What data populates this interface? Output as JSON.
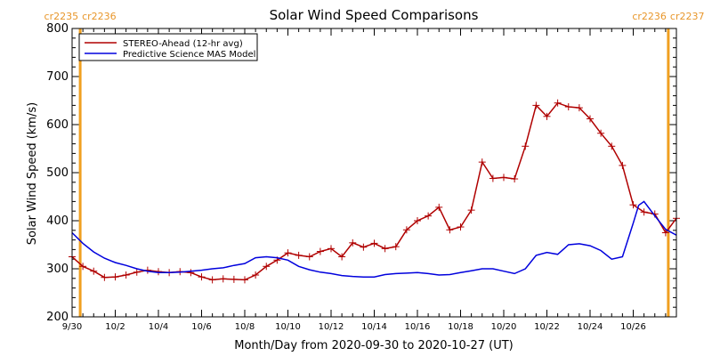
{
  "chart_data": {
    "type": "line",
    "title": "Solar Wind Speed Comparisons",
    "xlabel": "Month/Day from 2020-09-30 to 2020-10-27 (UT)",
    "ylabel": "Solar Wind Speed (km/s)",
    "ylim": [
      200,
      800
    ],
    "yticks": [
      200,
      300,
      400,
      500,
      600,
      700,
      800
    ],
    "xlim": [
      "2020-09-30",
      "2020-10-28"
    ],
    "xtick_labels": [
      {
        "date": "2020-09-30",
        "label": "9/30"
      },
      {
        "date": "2020-10-02",
        "label": "10/2"
      },
      {
        "date": "2020-10-04",
        "label": "10/4"
      },
      {
        "date": "2020-10-06",
        "label": "10/6"
      },
      {
        "date": "2020-10-08",
        "label": "10/8"
      },
      {
        "date": "2020-10-10",
        "label": "10/10"
      },
      {
        "date": "2020-10-12",
        "label": "10/12"
      },
      {
        "date": "2020-10-14",
        "label": "10/14"
      },
      {
        "date": "2020-10-16",
        "label": "10/16"
      },
      {
        "date": "2020-10-18",
        "label": "10/18"
      },
      {
        "date": "2020-10-20",
        "label": "10/20"
      },
      {
        "date": "2020-10-22",
        "label": "10/22"
      },
      {
        "date": "2020-10-24",
        "label": "10/24"
      },
      {
        "date": "2020-10-26",
        "label": "10/26"
      }
    ],
    "legend_position": "top-left",
    "carrington_markers": [
      {
        "date": "2020-09-30 09:00",
        "label_left": "cr2235",
        "label_right": "cr2236"
      },
      {
        "date": "2020-10-27 15:00",
        "label_left": "cr2236",
        "label_right": "cr2237"
      }
    ],
    "series": [
      {
        "name": "STEREO-Ahead (12-hr avg)",
        "color": "#b00000",
        "markers": true,
        "x": [
          "2020-09-30 00:00",
          "2020-09-30 12:00",
          "2020-10-01 00:00",
          "2020-10-01 12:00",
          "2020-10-02 00:00",
          "2020-10-02 12:00",
          "2020-10-03 00:00",
          "2020-10-03 12:00",
          "2020-10-04 00:00",
          "2020-10-04 12:00",
          "2020-10-05 00:00",
          "2020-10-05 12:00",
          "2020-10-06 00:00",
          "2020-10-06 12:00",
          "2020-10-07 00:00",
          "2020-10-07 12:00",
          "2020-10-08 00:00",
          "2020-10-08 12:00",
          "2020-10-09 00:00",
          "2020-10-09 12:00",
          "2020-10-10 00:00",
          "2020-10-10 12:00",
          "2020-10-11 00:00",
          "2020-10-11 12:00",
          "2020-10-12 00:00",
          "2020-10-12 12:00",
          "2020-10-13 00:00",
          "2020-10-13 12:00",
          "2020-10-14 00:00",
          "2020-10-14 12:00",
          "2020-10-15 00:00",
          "2020-10-15 12:00",
          "2020-10-16 00:00",
          "2020-10-16 12:00",
          "2020-10-17 00:00",
          "2020-10-17 12:00",
          "2020-10-18 00:00",
          "2020-10-18 12:00",
          "2020-10-19 00:00",
          "2020-10-19 12:00",
          "2020-10-20 00:00",
          "2020-10-20 12:00",
          "2020-10-21 00:00",
          "2020-10-21 12:00",
          "2020-10-22 00:00",
          "2020-10-22 12:00",
          "2020-10-23 00:00",
          "2020-10-23 12:00",
          "2020-10-24 00:00",
          "2020-10-24 12:00",
          "2020-10-25 00:00",
          "2020-10-25 12:00",
          "2020-10-26 00:00",
          "2020-10-26 12:00",
          "2020-10-27 00:00",
          "2020-10-27 12:00",
          "2020-10-28 00:00"
        ],
        "y": [
          325,
          305,
          295,
          282,
          283,
          287,
          293,
          297,
          294,
          292,
          294,
          292,
          283,
          277,
          279,
          278,
          277,
          287,
          305,
          318,
          333,
          328,
          325,
          336,
          342,
          325,
          354,
          345,
          353,
          342,
          346,
          381,
          400,
          410,
          428,
          381,
          387,
          422,
          522,
          488,
          490,
          487,
          555,
          640,
          617,
          645,
          637,
          635,
          612,
          582,
          555,
          515,
          433,
          418,
          414,
          375,
          405
        ]
      },
      {
        "name": "Predictive Science MAS Model",
        "color": "#0000dd",
        "markers": false,
        "x": [
          "2020-09-30 00:00",
          "2020-09-30 12:00",
          "2020-10-01 00:00",
          "2020-10-01 12:00",
          "2020-10-02 00:00",
          "2020-10-02 12:00",
          "2020-10-03 00:00",
          "2020-10-03 12:00",
          "2020-10-04 00:00",
          "2020-10-04 12:00",
          "2020-10-05 00:00",
          "2020-10-05 12:00",
          "2020-10-06 00:00",
          "2020-10-06 12:00",
          "2020-10-07 00:00",
          "2020-10-07 12:00",
          "2020-10-08 00:00",
          "2020-10-08 12:00",
          "2020-10-09 00:00",
          "2020-10-09 12:00",
          "2020-10-10 00:00",
          "2020-10-10 12:00",
          "2020-10-11 00:00",
          "2020-10-11 12:00",
          "2020-10-12 00:00",
          "2020-10-12 12:00",
          "2020-10-13 00:00",
          "2020-10-13 12:00",
          "2020-10-14 00:00",
          "2020-10-14 12:00",
          "2020-10-15 00:00",
          "2020-10-15 12:00",
          "2020-10-16 00:00",
          "2020-10-16 12:00",
          "2020-10-17 00:00",
          "2020-10-17 12:00",
          "2020-10-18 00:00",
          "2020-10-18 12:00",
          "2020-10-19 00:00",
          "2020-10-19 12:00",
          "2020-10-20 00:00",
          "2020-10-20 12:00",
          "2020-10-21 00:00",
          "2020-10-21 12:00",
          "2020-10-22 00:00",
          "2020-10-22 12:00",
          "2020-10-23 00:00",
          "2020-10-23 12:00",
          "2020-10-24 00:00",
          "2020-10-24 12:00",
          "2020-10-25 00:00",
          "2020-10-25 12:00",
          "2020-10-26 00:00",
          "2020-10-26 06:00",
          "2020-10-26 12:00",
          "2020-10-27 00:00",
          "2020-10-27 12:00",
          "2020-10-28 00:00"
        ],
        "y": [
          375,
          353,
          335,
          322,
          313,
          307,
          300,
          295,
          292,
          292,
          293,
          295,
          297,
          300,
          302,
          307,
          311,
          323,
          325,
          323,
          318,
          305,
          298,
          293,
          290,
          286,
          284,
          283,
          283,
          288,
          290,
          291,
          292,
          290,
          287,
          288,
          292,
          296,
          300,
          300,
          295,
          290,
          300,
          328,
          334,
          330,
          350,
          352,
          348,
          338,
          320,
          325,
          395,
          432,
          440,
          410,
          382,
          370
        ]
      }
    ]
  }
}
